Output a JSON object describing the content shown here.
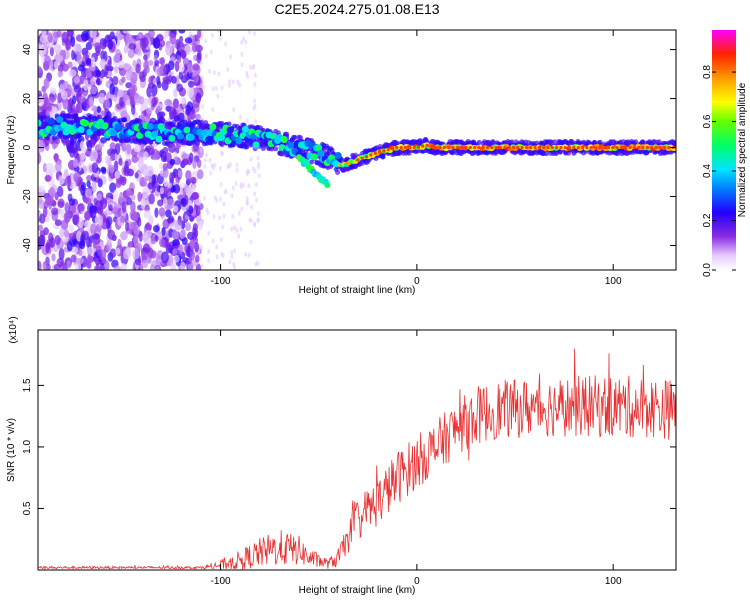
{
  "title": "C2E5.2024.275.01.08.E13",
  "chart_data": [
    {
      "type": "heatmap",
      "xlabel": "Height of straight line (km)",
      "ylabel": "Frequency (Hz)",
      "xlim": [
        -193,
        132
      ],
      "ylim": [
        -50,
        48
      ],
      "xticks": [
        -100,
        0,
        100
      ],
      "yticks": [
        -40,
        -20,
        0,
        20,
        40
      ],
      "colorbar": {
        "label": "Normalized spectral amplitude",
        "range": [
          0,
          0.97
        ],
        "ticks": [
          0.0,
          0.2,
          0.4,
          0.6,
          0.8
        ],
        "tick_labels": [
          "0.0",
          "0.2",
          "0.4",
          "0.6",
          "0.8"
        ]
      },
      "ridge": {
        "x": [
          -193,
          -170,
          -150,
          -130,
          -110,
          -90,
          -75,
          -60,
          -52,
          -45,
          -38,
          -30,
          -20,
          -10,
          0,
          5,
          10,
          20,
          40,
          60,
          80,
          100,
          132
        ],
        "y": [
          8,
          9,
          7,
          6,
          6,
          5,
          3,
          0,
          -2,
          -4,
          -7,
          -5,
          -2,
          0,
          0,
          1,
          0,
          0,
          0,
          0,
          0,
          0,
          0
        ]
      },
      "branch": {
        "x": [
          -60,
          -55,
          -50,
          -45
        ],
        "y": [
          -4,
          -8,
          -12,
          -15
        ]
      },
      "noise_region_x": [
        -193,
        -110
      ]
    },
    {
      "type": "line",
      "xlabel": "Height of straight line (km)",
      "ylabel": "SNR (10 * v/v)",
      "y_multiplier": "(x10⁴)",
      "xlim": [
        -193,
        132
      ],
      "ylim": [
        0,
        1.95
      ],
      "xticks": [
        -100,
        0,
        100
      ],
      "yticks": [
        0.5,
        1.0,
        1.5
      ],
      "ytick_labels": [
        "0.5",
        "1.0",
        "1.5"
      ],
      "series_color": "#e83232",
      "envelope": {
        "x": [
          -193,
          -110,
          -100,
          -90,
          -80,
          -70,
          -60,
          -55,
          -45,
          -40,
          -35,
          -30,
          -20,
          -10,
          0,
          10,
          20,
          30,
          40,
          60,
          80,
          100,
          120,
          132
        ],
        "mean": [
          0.02,
          0.02,
          0.04,
          0.08,
          0.14,
          0.18,
          0.16,
          0.1,
          0.05,
          0.1,
          0.25,
          0.42,
          0.55,
          0.75,
          0.88,
          1.0,
          1.15,
          1.25,
          1.3,
          1.32,
          1.33,
          1.33,
          1.32,
          1.3
        ],
        "spread": [
          0.01,
          0.01,
          0.04,
          0.08,
          0.12,
          0.15,
          0.12,
          0.08,
          0.04,
          0.08,
          0.12,
          0.18,
          0.2,
          0.22,
          0.22,
          0.22,
          0.22,
          0.24,
          0.24,
          0.24,
          0.25,
          0.26,
          0.25,
          0.25
        ]
      }
    }
  ]
}
